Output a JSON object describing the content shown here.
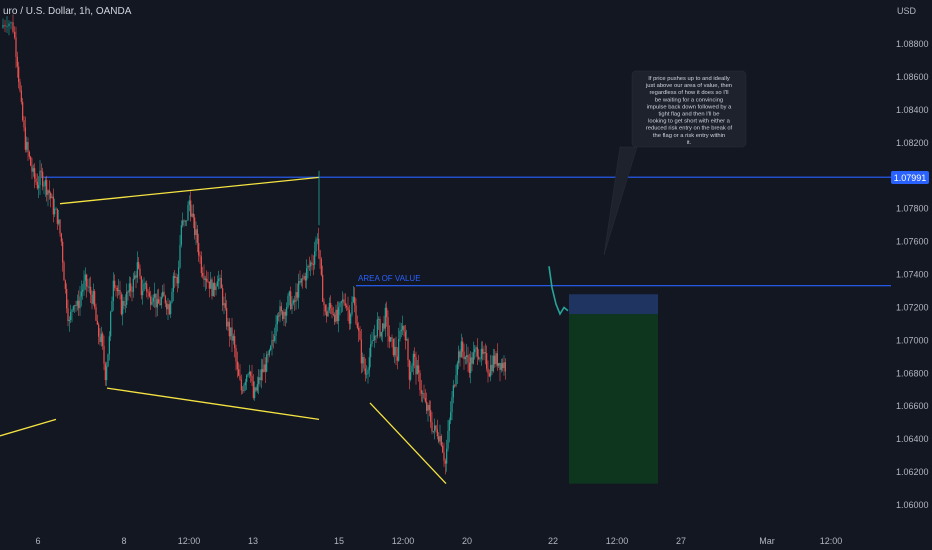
{
  "header": {
    "symbol_title": "uro / U.S. Dollar, 1h, OANDA"
  },
  "colors": {
    "background": "#131722",
    "up_candle": "#26a69a",
    "down_candle": "#ef5350",
    "trend_line": "#f5e342",
    "level_line": "#2962ff",
    "axis_text": "#b2b5be",
    "grid": "#1e222d",
    "callout_bg": "#1e222d",
    "stop_zone": "#223a6b",
    "target_zone": "#0e3a1f",
    "price_badge": "#2962ff"
  },
  "chart_data": {
    "type": "candlestick",
    "currency_label": "USD",
    "y_ticks": [
      "1.08800",
      "1.08600",
      "1.08400",
      "1.08200",
      "1.08000",
      "1.07800",
      "1.07600",
      "1.07400",
      "1.07200",
      "1.07000",
      "1.06800",
      "1.06600",
      "1.06400",
      "1.06200",
      "1.06000"
    ],
    "ylim": [
      1.0592,
      1.0912
    ],
    "x_ticks": [
      "6",
      "8",
      "12:00",
      "13",
      "15",
      "12:00",
      "20",
      "22",
      "12:00",
      "27",
      "Mar",
      "12:00"
    ],
    "current_price_label": "1.07991",
    "levels": [
      {
        "price": 1.07991,
        "name": "resistance"
      },
      {
        "price": 1.07332,
        "name": "area-of-value",
        "label": "AREA OF VALUE"
      }
    ],
    "annotation": "If price pushes up to and ideally just above our area of value, then regardless of how it does so I'll be waiting for a convincing impulse back down followed by a tight flag and then I'll be looking to get short with either a reduced risk entry on the break of the flag or a risk entry within it.",
    "position": {
      "type": "short",
      "entry": 1.0716,
      "stop": 1.0728,
      "target": 1.0613
    },
    "trend_lines": [
      {
        "from": [
          0,
          1.0642
        ],
        "to": [
          56,
          1.0652
        ]
      },
      {
        "from": [
          60,
          1.0783
        ],
        "to": [
          319,
          1.0799
        ]
      },
      {
        "from": [
          107,
          1.0671
        ],
        "to": [
          319,
          1.0652
        ]
      },
      {
        "from": [
          370,
          1.0662
        ],
        "to": [
          446,
          1.0613
        ]
      }
    ],
    "price_path": [
      [
        2,
        1.089
      ],
      [
        8,
        1.0895
      ],
      [
        14,
        1.089
      ],
      [
        18,
        1.087
      ],
      [
        22,
        1.084
      ],
      [
        26,
        1.082
      ],
      [
        30,
        1.081
      ],
      [
        34,
        1.08
      ],
      [
        38,
        1.0795
      ],
      [
        42,
        1.08
      ],
      [
        46,
        1.0795
      ],
      [
        50,
        1.079
      ],
      [
        54,
        1.078
      ],
      [
        58,
        1.0775
      ],
      [
        62,
        1.076
      ],
      [
        66,
        1.073
      ],
      [
        70,
        1.071
      ],
      [
        74,
        1.0725
      ],
      [
        78,
        1.072
      ],
      [
        82,
        1.073
      ],
      [
        86,
        1.0735
      ],
      [
        90,
        1.073
      ],
      [
        94,
        1.0725
      ],
      [
        98,
        1.0705
      ],
      [
        102,
        1.07
      ],
      [
        106,
        1.068
      ],
      [
        110,
        1.07
      ],
      [
        114,
        1.074
      ],
      [
        118,
        1.073
      ],
      [
        122,
        1.072
      ],
      [
        126,
        1.0725
      ],
      [
        130,
        1.073
      ],
      [
        134,
        1.0735
      ],
      [
        138,
        1.0745
      ],
      [
        142,
        1.073
      ],
      [
        146,
        1.0735
      ],
      [
        150,
        1.0725
      ],
      [
        154,
        1.073
      ],
      [
        158,
        1.072
      ],
      [
        162,
        1.0725
      ],
      [
        166,
        1.0725
      ],
      [
        170,
        1.072
      ],
      [
        174,
        1.074
      ],
      [
        178,
        1.0735
      ],
      [
        182,
        1.077
      ],
      [
        186,
        1.077
      ],
      [
        190,
        1.0785
      ],
      [
        194,
        1.077
      ],
      [
        198,
        1.076
      ],
      [
        202,
        1.0745
      ],
      [
        206,
        1.074
      ],
      [
        210,
        1.0735
      ],
      [
        214,
        1.073
      ],
      [
        218,
        1.074
      ],
      [
        222,
        1.073
      ],
      [
        226,
        1.0715
      ],
      [
        230,
        1.0705
      ],
      [
        234,
        1.07
      ],
      [
        238,
        1.068
      ],
      [
        242,
        1.067
      ],
      [
        246,
        1.0678
      ],
      [
        250,
        1.0685
      ],
      [
        254,
        1.0665
      ],
      [
        258,
        1.0672
      ],
      [
        262,
        1.068
      ],
      [
        266,
        1.0685
      ],
      [
        270,
        1.069
      ],
      [
        274,
        1.07
      ],
      [
        278,
        1.072
      ],
      [
        282,
        1.0715
      ],
      [
        286,
        1.072
      ],
      [
        290,
        1.0725
      ],
      [
        294,
        1.072
      ],
      [
        298,
        1.073
      ],
      [
        302,
        1.0735
      ],
      [
        306,
        1.074
      ],
      [
        310,
        1.0745
      ],
      [
        314,
        1.075
      ],
      [
        318,
        1.0765
      ],
      [
        322,
        1.0735
      ],
      [
        326,
        1.0715
      ],
      [
        330,
        1.072
      ],
      [
        334,
        1.0718
      ],
      [
        338,
        1.0712
      ],
      [
        342,
        1.0722
      ],
      [
        346,
        1.0725
      ],
      [
        350,
        1.0715
      ],
      [
        354,
        1.0725
      ],
      [
        358,
        1.071
      ],
      [
        362,
        1.069
      ],
      [
        366,
        1.068
      ],
      [
        370,
        1.069
      ],
      [
        374,
        1.07
      ],
      [
        378,
        1.071
      ],
      [
        382,
        1.0705
      ],
      [
        386,
        1.0715
      ],
      [
        390,
        1.07
      ],
      [
        394,
        1.0695
      ],
      [
        398,
        1.069
      ],
      [
        402,
        1.071
      ],
      [
        406,
        1.0705
      ],
      [
        410,
        1.068
      ],
      [
        414,
        1.069
      ],
      [
        418,
        1.068
      ],
      [
        422,
        1.067
      ],
      [
        426,
        1.066
      ],
      [
        430,
        1.0655
      ],
      [
        434,
        1.0645
      ],
      [
        438,
        1.0645
      ],
      [
        442,
        1.064
      ],
      [
        446,
        1.0625
      ],
      [
        450,
        1.065
      ],
      [
        454,
        1.067
      ],
      [
        458,
        1.069
      ],
      [
        462,
        1.0695
      ],
      [
        466,
        1.069
      ],
      [
        470,
        1.0685
      ],
      [
        474,
        1.069
      ],
      [
        478,
        1.0695
      ],
      [
        482,
        1.069
      ],
      [
        486,
        1.0688
      ],
      [
        490,
        1.0682
      ],
      [
        494,
        1.0688
      ],
      [
        498,
        1.0688
      ],
      [
        502,
        1.0686
      ],
      [
        506,
        1.0685
      ]
    ],
    "projection": [
      [
        549,
        1.0745
      ],
      [
        552,
        1.0732
      ],
      [
        556,
        1.0722
      ],
      [
        560,
        1.0716
      ],
      [
        564,
        1.072
      ],
      [
        568,
        1.0718
      ]
    ]
  }
}
